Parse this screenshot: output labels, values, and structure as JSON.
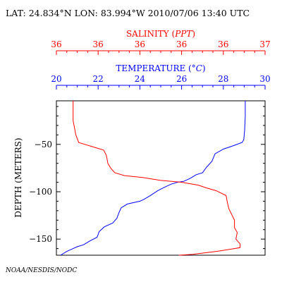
{
  "header": {
    "location_time": "LAT: 24.834°N LON: 83.994°W 2010/07/06 13:40 UTC"
  },
  "credit": "NOAA/NESDIS/NODC",
  "colors": {
    "salinity": "#ff0000",
    "temperature": "#0000ff",
    "axes": "#000000"
  },
  "chart_data": {
    "type": "line",
    "title": "",
    "salinity_axis": {
      "label_prefix": "SALINITY (",
      "label_unit": "PPT",
      "label_suffix": ")",
      "range": [
        35.5,
        37
      ],
      "tick_labels": [
        "36",
        "36",
        "36",
        "36",
        "36",
        "37"
      ]
    },
    "temperature_axis": {
      "label_prefix": "TEMPERATURE (",
      "label_unit": "°C",
      "label_suffix": ")",
      "range": [
        20,
        30
      ],
      "tick_labels": [
        "20",
        "22",
        "24",
        "26",
        "28",
        "30"
      ]
    },
    "depth_axis": {
      "label": "DEPTH (METERS)",
      "range": [
        -167,
        -4
      ],
      "ticks": [
        -50,
        -100,
        -150
      ],
      "tick_labels": [
        "−50",
        "−100",
        "−150"
      ]
    },
    "grid": false,
    "series": [
      {
        "id": "temperature",
        "points": [
          [
            29.05,
            -4
          ],
          [
            29.05,
            -20
          ],
          [
            29.02,
            -35
          ],
          [
            28.98,
            -45
          ],
          [
            28.9,
            -48
          ],
          [
            28.4,
            -52
          ],
          [
            28.0,
            -55
          ],
          [
            27.6,
            -60
          ],
          [
            27.45,
            -68
          ],
          [
            27.2,
            -74
          ],
          [
            27.0,
            -80
          ],
          [
            26.7,
            -82
          ],
          [
            26.4,
            -86
          ],
          [
            26.1,
            -89
          ],
          [
            25.8,
            -90
          ],
          [
            25.5,
            -92
          ],
          [
            25.2,
            -95
          ],
          [
            24.85,
            -99
          ],
          [
            24.5,
            -104
          ],
          [
            24.2,
            -108
          ],
          [
            24.0,
            -110
          ],
          [
            23.4,
            -113
          ],
          [
            23.1,
            -117
          ],
          [
            23.0,
            -122
          ],
          [
            22.9,
            -128
          ],
          [
            22.7,
            -133
          ],
          [
            22.3,
            -137
          ],
          [
            22.05,
            -142
          ],
          [
            21.95,
            -148
          ],
          [
            21.6,
            -152
          ],
          [
            21.3,
            -156
          ],
          [
            21.0,
            -158
          ],
          [
            20.8,
            -160
          ],
          [
            20.5,
            -163
          ],
          [
            20.2,
            -167
          ]
        ]
      },
      {
        "id": "salinity",
        "points": [
          [
            35.62,
            -4
          ],
          [
            35.62,
            -25
          ],
          [
            35.64,
            -40
          ],
          [
            35.66,
            -48
          ],
          [
            35.75,
            -52
          ],
          [
            35.84,
            -56
          ],
          [
            35.86,
            -62
          ],
          [
            35.87,
            -70
          ],
          [
            35.89,
            -75
          ],
          [
            35.92,
            -80
          ],
          [
            35.99,
            -83
          ],
          [
            36.12,
            -85
          ],
          [
            36.25,
            -88
          ],
          [
            36.4,
            -90
          ],
          [
            36.52,
            -93
          ],
          [
            36.58,
            -96
          ],
          [
            36.65,
            -99
          ],
          [
            36.72,
            -104
          ],
          [
            36.73,
            -112
          ],
          [
            36.74,
            -118
          ],
          [
            36.76,
            -124
          ],
          [
            36.78,
            -130
          ],
          [
            36.78,
            -138
          ],
          [
            36.8,
            -143
          ],
          [
            36.79,
            -150
          ],
          [
            36.82,
            -155
          ],
          [
            36.82,
            -159
          ],
          [
            36.74,
            -161
          ],
          [
            36.65,
            -163
          ],
          [
            36.48,
            -166
          ],
          [
            36.38,
            -167
          ]
        ]
      }
    ]
  }
}
